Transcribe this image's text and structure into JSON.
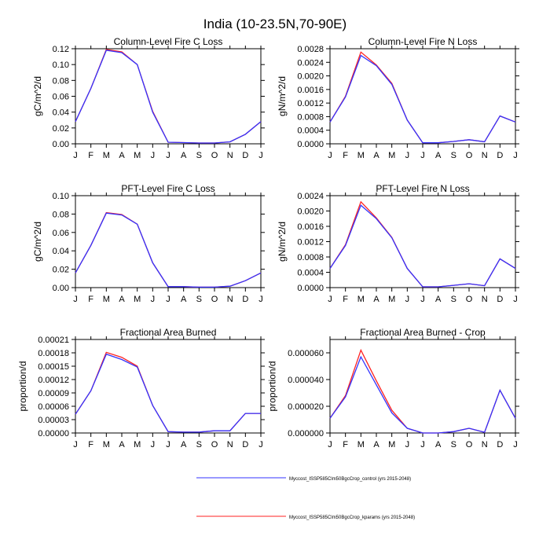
{
  "title": "India (10-23.5N,70-90E)",
  "colors": {
    "control": "#3333ff",
    "kparams": "#ff2222"
  },
  "legend": [
    {
      "label": "Myccost_ISSP585Clm50BgcCrop_control (yrs 2015-2048)",
      "series": "control"
    },
    {
      "label": "Myccost_ISSP585Clm50BgcCrop_kparams (yrs 2015-2048)",
      "series": "kparams"
    }
  ],
  "chart_data": [
    {
      "type": "line",
      "title": "Column-Level Fire C Loss",
      "ylabel": "gC/m^2/d",
      "categories": [
        "J",
        "F",
        "M",
        "A",
        "M",
        "J",
        "J",
        "A",
        "S",
        "O",
        "N",
        "D",
        "J"
      ],
      "ylim": [
        0,
        0.12
      ],
      "yticks": [
        "0.00",
        "0.02",
        "0.04",
        "0.06",
        "0.08",
        "0.10",
        "0.12"
      ],
      "ytick_values": [
        0,
        0.02,
        0.04,
        0.06,
        0.08,
        0.1,
        0.12
      ],
      "series": [
        {
          "name": "control",
          "values": [
            0.028,
            0.07,
            0.118,
            0.115,
            0.1,
            0.04,
            0.002,
            0.0015,
            0.001,
            0.001,
            0.0025,
            0.012,
            0.028
          ]
        },
        {
          "name": "kparams",
          "values": [
            0.028,
            0.07,
            0.119,
            0.116,
            0.1,
            0.041,
            0.002,
            0.0015,
            0.001,
            0.001,
            0.0025,
            0.012,
            0.028
          ]
        }
      ]
    },
    {
      "type": "line",
      "title": "Column-Level Fire N Loss",
      "ylabel": "gN/m^2/d",
      "categories": [
        "J",
        "F",
        "M",
        "A",
        "M",
        "J",
        "J",
        "A",
        "S",
        "O",
        "N",
        "D",
        "J"
      ],
      "ylim": [
        0,
        0.0028
      ],
      "yticks": [
        "0.0000",
        "0.0004",
        "0.0008",
        "0.0012",
        "0.0016",
        "0.0020",
        "0.0024",
        "0.0028"
      ],
      "ytick_values": [
        0,
        0.0004,
        0.0008,
        0.0012,
        0.0016,
        0.002,
        0.0024,
        0.0028
      ],
      "series": [
        {
          "name": "control",
          "values": [
            0.00064,
            0.00138,
            0.0026,
            0.0023,
            0.00175,
            0.0007,
            3e-05,
            3e-05,
            7e-05,
            0.00012,
            6e-05,
            0.00082,
            0.00064
          ]
        },
        {
          "name": "kparams",
          "values": [
            0.00064,
            0.0014,
            0.0027,
            0.00232,
            0.00178,
            0.0007,
            3e-05,
            3e-05,
            7e-05,
            0.00012,
            6e-05,
            0.00082,
            0.00064
          ]
        }
      ]
    },
    {
      "type": "line",
      "title": "PFT-Level Fire C Loss",
      "ylabel": "gC/m^2/d",
      "categories": [
        "J",
        "F",
        "M",
        "A",
        "M",
        "J",
        "J",
        "A",
        "S",
        "O",
        "N",
        "D",
        "J"
      ],
      "ylim": [
        0,
        0.1
      ],
      "yticks": [
        "0.00",
        "0.02",
        "0.04",
        "0.06",
        "0.08",
        "0.10"
      ],
      "ytick_values": [
        0,
        0.02,
        0.04,
        0.06,
        0.08,
        0.1
      ],
      "series": [
        {
          "name": "control",
          "values": [
            0.016,
            0.046,
            0.081,
            0.079,
            0.069,
            0.027,
            0.001,
            0.001,
            0.0005,
            0.0005,
            0.0015,
            0.0075,
            0.016
          ]
        },
        {
          "name": "kparams",
          "values": [
            0.016,
            0.046,
            0.0815,
            0.0795,
            0.069,
            0.027,
            0.001,
            0.001,
            0.0005,
            0.0005,
            0.0015,
            0.0075,
            0.016
          ]
        }
      ]
    },
    {
      "type": "line",
      "title": "PFT-Level Fire N Loss",
      "ylabel": "gN/m^2/d",
      "categories": [
        "J",
        "F",
        "M",
        "A",
        "M",
        "J",
        "J",
        "A",
        "S",
        "O",
        "N",
        "D",
        "J"
      ],
      "ylim": [
        0,
        0.0024
      ],
      "yticks": [
        "0.0000",
        "0.0004",
        "0.0008",
        "0.0012",
        "0.0016",
        "0.0020",
        "0.0024"
      ],
      "ytick_values": [
        0,
        0.0004,
        0.0008,
        0.0012,
        0.0016,
        0.002,
        0.0024
      ],
      "series": [
        {
          "name": "control",
          "values": [
            0.0005,
            0.0011,
            0.00215,
            0.0018,
            0.0013,
            0.0005,
            2e-05,
            2e-05,
            6e-05,
            0.0001,
            5e-05,
            0.00075,
            0.0005
          ]
        },
        {
          "name": "kparams",
          "values": [
            0.0005,
            0.00112,
            0.00224,
            0.00182,
            0.00131,
            0.0005,
            2e-05,
            2e-05,
            6e-05,
            0.0001,
            5e-05,
            0.00075,
            0.0005
          ]
        }
      ]
    },
    {
      "type": "line",
      "title": "Fractional Area Burned",
      "ylabel": "proportion/d",
      "categories": [
        "J",
        "F",
        "M",
        "A",
        "M",
        "J",
        "J",
        "A",
        "S",
        "O",
        "N",
        "D",
        "J"
      ],
      "ylim": [
        0,
        0.00021
      ],
      "yticks": [
        "0.00000",
        "0.00003",
        "0.00006",
        "0.00009",
        "0.00012",
        "0.00015",
        "0.00018",
        "0.00021"
      ],
      "ytick_values": [
        0,
        3e-05,
        6e-05,
        9e-05,
        0.00012,
        0.00015,
        0.00018,
        0.00021
      ],
      "series": [
        {
          "name": "control",
          "values": [
            4.2e-05,
            9.5e-05,
            0.000177,
            0.000165,
            0.000148,
            6.2e-05,
            3e-06,
            2e-06,
            2e-06,
            5e-06,
            5e-06,
            4.4e-05,
            4.4e-05
          ]
        },
        {
          "name": "kparams",
          "values": [
            4.2e-05,
            9.5e-05,
            0.000181,
            0.00017,
            0.00015,
            6.2e-05,
            3e-06,
            2e-06,
            2e-06,
            5e-06,
            5e-06,
            4.4e-05,
            4.4e-05
          ]
        }
      ]
    },
    {
      "type": "line",
      "title": "Fractional Area Burned - Crop",
      "ylabel": "proportion/d",
      "categories": [
        "J",
        "F",
        "M",
        "A",
        "M",
        "J",
        "J",
        "A",
        "S",
        "O",
        "N",
        "D",
        "J"
      ],
      "ylim": [
        0,
        7e-05
      ],
      "yticks": [
        "0.000000",
        "0.000020",
        "0.000040",
        "0.000060"
      ],
      "ytick_values": [
        0,
        2e-05,
        4e-05,
        6e-05
      ],
      "series": [
        {
          "name": "control",
          "values": [
            1.1e-05,
            2.7e-05,
            5.7e-05,
            3.6e-05,
            1.5e-05,
            3.5e-06,
            0,
            0,
            1e-06,
            3.5e-06,
            5e-07,
            3.2e-05,
            1.1e-05
          ]
        },
        {
          "name": "kparams",
          "values": [
            1.1e-05,
            2.8e-05,
            6.2e-05,
            3.9e-05,
            1.7e-05,
            3.5e-06,
            0,
            0,
            1e-06,
            3.5e-06,
            5e-07,
            3.2e-05,
            1.1e-05
          ]
        }
      ]
    }
  ]
}
